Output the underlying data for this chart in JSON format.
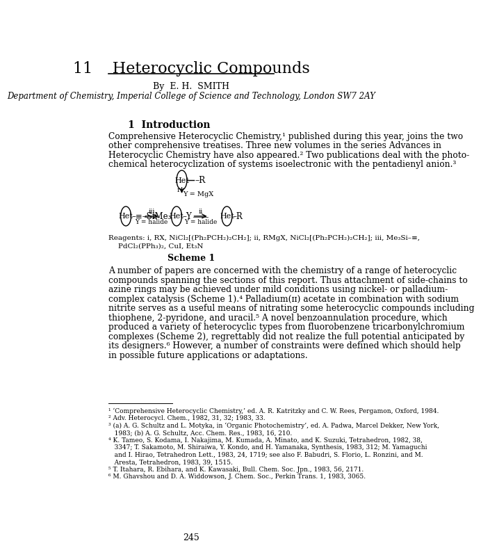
{
  "bg_color": "#ffffff",
  "chapter_num": "11",
  "chapter_title": "Heterocyclic Compounds",
  "author_line": "By  E. H.  SMITH",
  "dept_line": "Department of Chemistry, Imperial College of Science and Technology, London SW7 2AY",
  "section_title": "1  Introduction",
  "intro_para": "Comprehensive Heterocyclic Chemistry,¹ published during this year, joins the two\nother comprehensive treatises. Three new volumes in the series Advances in\nHeterocyclic Chemistry have also appeared.² Two publications deal with the photo-\nchemical heterocyclization of systems isoelectronic with the pentadienyl anion.³",
  "reagents_line1": "Reagents: i, RX, NiCl₂[(Ph₂PCH₂)₂CH₂]; ii, RMgX, NiCl₂[(Ph₂PCH₂)₂CH₂]; iii, Me₃Si–≡,",
  "reagents_line2": "PdCl₂(PPh₃)₂, CuI, Et₃N",
  "scheme_label": "Scheme 1",
  "main_para": "A number of papers are concerned with the chemistry of a range of heterocyclic\ncompounds spanning the sections of this report. Thus attachment of side-chains to\nazine rings may be achieved under mild conditions using nickel- or palladium-\ncomplex catalysis (Scheme 1).⁴ Palladium(ɪɪ) acetate in combination with sodium\nnitrite serves as a useful means of nitrating some heterocyclic compounds including\nthiophene, 2-pyridone, and uracil.⁵ A novel benzoannulation procedure, which\nproduced a variety of heterocyclic types from fluorobenzene tricarbonylchromium\ncomplexes (Scheme 2), regrettably did not realize the full potential anticipated by\nits designers.⁶ However, a number of constraints were defined which should help\nin possible future applications or adaptations.",
  "footnotes": [
    "¹ ‘Comprehensive Heterocyclic Chemistry,’ ed. A. R. Katritzky and C. W. Rees, Pergamon, Oxford, 1984.",
    "² Adv. Heterocycl. Chem., 1982, 31, 32; 1983, 33.",
    "³ (a) A. G. Schultz and L. Motyka, in ‘Organic Photochemistry’, ed. A. Padwa, Marcel Dekker, New York,",
    "   1983; (b) A. G. Schultz, Acc. Chem. Res., 1983, 16, 210.",
    "⁴ K. Tameo, S. Kodama, I. Nakajima, M. Kumada, A. Minato, and K. Suzuki, Tetrahedron, 1982, 38,",
    "   3347; T. Sakamoto, M. Shiraiwa, Y. Kondo, and H. Yamanaka, Synthesis, 1983, 312; M. Yamaguchi",
    "   and I. Hirao, Tetrahedron Lett., 1983, 24, 1719; see also F. Babudri, S. Florio, L. Ronzini, and M.",
    "   Aresta, Tetrahedron, 1983, 39, 1515.",
    "⁵ T. Itahara, R. Ebihara, and K. Kawasaki, Bull. Chem. Soc. Jpn., 1983, 56, 2171.",
    "⁶ M. Ghavshou and D. A. Widdowson, J. Chem. Soc., Perkin Trans. 1, 1983, 3065."
  ],
  "page_num": "245",
  "reagents_line2_indent": 55
}
